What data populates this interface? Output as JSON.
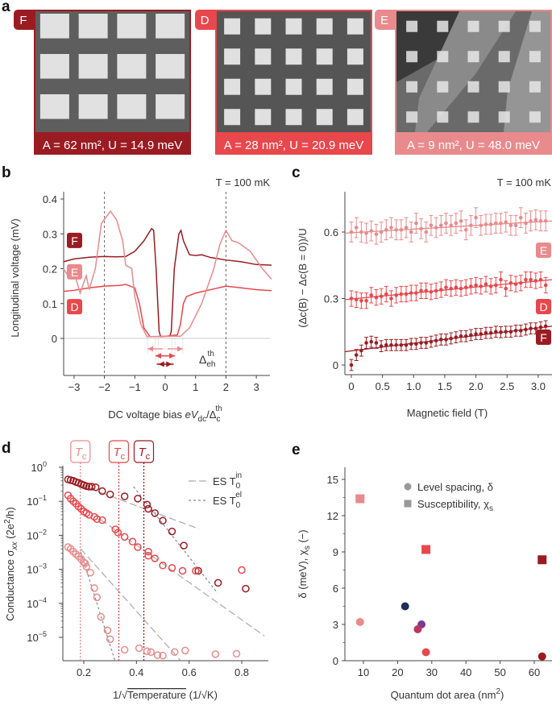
{
  "colors": {
    "F": "#9b1b22",
    "D": "#e8474c",
    "E": "#e98a8c",
    "gray": "#999999",
    "navy": "#1f2d57",
    "purple": "#7b3a8c",
    "rose": "#b83a5e"
  },
  "panel_letters": {
    "a": "a",
    "b": "b",
    "c": "c",
    "d": "d",
    "e": "e"
  },
  "panel_a": {
    "tiles": [
      {
        "tag": "F",
        "caption": "A = 62 nm², U = 14.9 meV",
        "color": "#9b1b22"
      },
      {
        "tag": "D",
        "caption": "A = 28 nm², U = 20.9 meV",
        "color": "#e8474c"
      },
      {
        "tag": "E",
        "caption": "A = 9 nm², U = 48.0 meV",
        "color": "#e98a8c"
      }
    ]
  },
  "chart_data": [
    {
      "panel": "b",
      "type": "line",
      "annotation": "T = 100 mK",
      "xlabel": {
        "main": "DC voltage bias ",
        "var": "eV",
        "sub": "dc",
        "slash": "/Δ",
        "sub2": "c",
        "sup2": "th"
      },
      "ylabel": "Longitudinal voltage (mV)",
      "xlim": [
        -3.35,
        3.5
      ],
      "ylim": [
        -0.105,
        0.42
      ],
      "xticks": [
        -3,
        -2,
        -1,
        0,
        1,
        2,
        3
      ],
      "xticklabels": [
        "−3",
        "−2",
        "−1",
        "0",
        "1",
        "2",
        "3"
      ],
      "yticks": [
        0,
        0.1,
        0.2,
        0.3,
        0.4
      ],
      "yticklabels": [
        "0",
        "0.1",
        "0.2",
        "0.3",
        "0.4"
      ],
      "vlines_dashed": [
        -2,
        2
      ],
      "gap_annotation": {
        "label": "Δ",
        "sub": "eh",
        "sup": "th"
      },
      "series": [
        {
          "name": "F",
          "color": "#9b1b22",
          "x": [
            -3.35,
            -3,
            -2.5,
            -2,
            -1.6,
            -1.3,
            -1,
            -0.7,
            -0.45,
            -0.38,
            -0.3,
            -0.2,
            -0.15,
            0,
            0.15,
            0.2,
            0.3,
            0.45,
            0.52,
            0.6,
            0.8,
            1,
            1.2,
            1.5,
            2,
            2.5,
            3,
            3.5
          ],
          "y": [
            0.22,
            0.228,
            0.233,
            0.235,
            0.234,
            0.235,
            0.25,
            0.28,
            0.315,
            0.31,
            0.2,
            0.02,
            0.005,
            0.006,
            0.006,
            0.02,
            0.2,
            0.3,
            0.31,
            0.28,
            0.24,
            0.238,
            0.24,
            0.232,
            0.225,
            0.22,
            0.212,
            0.21
          ],
          "gap": 0.22
        },
        {
          "name": "D",
          "color": "#e8474c",
          "x": [
            -3.35,
            -3,
            -2.5,
            -2,
            -1.5,
            -1.3,
            -1,
            -0.85,
            -0.7,
            -0.5,
            0,
            0.4,
            0.5,
            0.6,
            0.7,
            1,
            1.5,
            2,
            2.5,
            3,
            3.5
          ],
          "y": [
            0.135,
            0.138,
            0.145,
            0.15,
            0.152,
            0.155,
            0.145,
            0.1,
            0.03,
            0.005,
            0.006,
            0.01,
            0.04,
            0.1,
            0.12,
            0.13,
            0.14,
            0.15,
            0.145,
            0.14,
            0.137
          ],
          "gap": 0.32
        },
        {
          "name": "E",
          "color": "#e98a8c",
          "x": [
            -3.35,
            -3.2,
            -3,
            -2.8,
            -2.6,
            -2.5,
            -2.3,
            -2.1,
            -1.8,
            -1.6,
            -1.4,
            -1.3,
            -1.1,
            -1,
            -0.8,
            -0.6,
            0,
            0.5,
            0.8,
            1.2,
            1.6,
            1.8,
            2,
            2.2,
            2.4,
            2.8,
            3.2,
            3.5
          ],
          "y": [
            0.2,
            0.18,
            0.19,
            0.13,
            0.18,
            0.14,
            0.2,
            0.33,
            0.365,
            0.34,
            0.28,
            0.21,
            0.2,
            0.12,
            0.04,
            0.005,
            0.006,
            0.006,
            0.03,
            0.1,
            0.2,
            0.27,
            0.31,
            0.28,
            0.275,
            0.25,
            0.2,
            0.17
          ],
          "gap": 0.58
        }
      ]
    },
    {
      "panel": "c",
      "type": "scatter",
      "annotation": "T = 100 mK",
      "xlabel": "Magnetic field (T)",
      "ylabel": "(Δc(B) − Δc(B = 0))/U",
      "xlim": [
        -0.1,
        3.22
      ],
      "ylim": [
        -0.05,
        0.78
      ],
      "xticks": [
        0,
        0.5,
        1.0,
        1.5,
        2.0,
        2.5,
        3.0
      ],
      "xticklabels": [
        "0",
        "0.5",
        "1.0",
        "1.5",
        "2.0",
        "2.5",
        "3.0"
      ],
      "yticks": [
        0,
        0.3,
        0.6
      ],
      "yticklabels": [
        "0",
        "0.3",
        "0.6"
      ],
      "x": [
        0,
        0.08,
        0.16,
        0.24,
        0.32,
        0.4,
        0.48,
        0.56,
        0.64,
        0.72,
        0.8,
        0.88,
        0.96,
        1.04,
        1.12,
        1.2,
        1.28,
        1.36,
        1.44,
        1.52,
        1.6,
        1.68,
        1.76,
        1.84,
        1.92,
        2.0,
        2.08,
        2.16,
        2.24,
        2.32,
        2.4,
        2.48,
        2.56,
        2.64,
        2.72,
        2.8,
        2.88,
        2.96,
        3.04,
        3.12
      ],
      "series": [
        {
          "name": "E",
          "color": "#e98a8c",
          "error": 0.045,
          "fit": [
            0.595,
            0.65
          ],
          "y": [
            0.6,
            0.62,
            0.6,
            0.595,
            0.605,
            0.59,
            0.6,
            0.61,
            0.62,
            0.61,
            0.61,
            0.62,
            0.6,
            0.64,
            0.615,
            0.6,
            0.63,
            0.62,
            0.63,
            0.64,
            0.63,
            0.64,
            0.65,
            0.61,
            0.63,
            0.665,
            0.63,
            0.635,
            0.635,
            0.64,
            0.64,
            0.645,
            0.63,
            0.63,
            0.665,
            0.64,
            0.65,
            0.655,
            0.65,
            0.65
          ]
        },
        {
          "name": "D",
          "color": "#e8474c",
          "error": 0.035,
          "fit": [
            0.295,
            0.385
          ],
          "y": [
            0.3,
            0.295,
            0.29,
            0.29,
            0.315,
            0.305,
            0.31,
            0.32,
            0.3,
            0.315,
            0.32,
            0.32,
            0.325,
            0.325,
            0.335,
            0.335,
            0.33,
            0.335,
            0.34,
            0.35,
            0.345,
            0.35,
            0.345,
            0.35,
            0.355,
            0.36,
            0.355,
            0.365,
            0.355,
            0.36,
            0.385,
            0.345,
            0.37,
            0.365,
            0.37,
            0.385,
            0.385,
            0.38,
            0.385,
            0.36
          ]
        },
        {
          "name": "F",
          "color": "#9b1b22",
          "error": 0.025,
          "fit": [
            0.06,
            0.175
          ],
          "y": [
            0,
            0.045,
            0.065,
            0.1,
            0.105,
            0.1,
            0.085,
            0.09,
            0.09,
            0.09,
            0.09,
            0.09,
            0.095,
            0.095,
            0.1,
            0.1,
            0.105,
            0.11,
            0.115,
            0.115,
            0.12,
            0.125,
            0.13,
            0.13,
            0.135,
            0.14,
            0.14,
            0.145,
            0.145,
            0.15,
            0.148,
            0.15,
            0.15,
            0.155,
            0.155,
            0.16,
            0.165,
            0.165,
            0.17,
            0.175
          ]
        }
      ]
    },
    {
      "panel": "d",
      "type": "scatter",
      "yscale": "log",
      "xlabel": {
        "pre": "1/√",
        "over": "Temperature",
        "post": " (1/√K)"
      },
      "ylabel": {
        "main": "Conductance σ",
        "sub": "xx",
        "unit": " (2e",
        "sup": "2",
        "unit2": "/h)"
      },
      "xlim": [
        0.12,
        0.9
      ],
      "ylim": [
        2e-06,
        1.1
      ],
      "xticks": [
        0.2,
        0.4,
        0.6,
        0.8
      ],
      "xticklabels": [
        "0.2",
        "0.4",
        "0.6",
        "0.8"
      ],
      "yticks_exp": [
        0,
        -1,
        -2,
        -3,
        -4,
        -5
      ],
      "ytick_base": "10",
      "ytick_exps": [
        "0",
        "−1",
        "−2",
        "−3",
        "−4",
        "−5"
      ],
      "tc_markers": [
        {
          "label": "T",
          "sub": "c",
          "x": 0.187,
          "color": "#e98a8c"
        },
        {
          "label": "T",
          "sub": "c",
          "x": 0.333,
          "color": "#e8474c"
        },
        {
          "label": "T",
          "sub": "c",
          "x": 0.428,
          "color": "#9b1b22"
        }
      ],
      "legend": [
        {
          "label": "ES T",
          "sub": "0",
          "sup": "in",
          "style": "long-dash"
        },
        {
          "label": "ES T",
          "sub": "0",
          "sup": "el",
          "style": "short-dash"
        }
      ],
      "legend_position": "top-right",
      "fits_long_dash": [
        [
          0.188,
          0.3,
          0.637,
          0.0155
        ],
        [
          0.264,
          0.029,
          0.886,
          1.1e-05
        ],
        [
          0.188,
          0.004,
          0.567,
          2.1e-06
        ]
      ],
      "fits_short_dash": [
        [
          0.389,
          0.27,
          0.708,
          0.0002
        ],
        [
          0.188,
          0.0033,
          0.318,
          2.1e-06
        ]
      ],
      "series": [
        {
          "name": "F",
          "color": "#9b1b22",
          "points": [
            [
              0.14,
              0.44
            ],
            [
              0.15,
              0.42
            ],
            [
              0.16,
              0.4
            ],
            [
              0.17,
              0.37
            ],
            [
              0.18,
              0.35
            ],
            [
              0.19,
              0.32
            ],
            [
              0.2,
              0.3
            ],
            [
              0.21,
              0.28
            ],
            [
              0.22,
              0.27
            ],
            [
              0.23,
              0.27
            ],
            [
              0.245,
              0.26
            ],
            [
              0.27,
              0.2
            ],
            [
              0.3,
              0.16
            ],
            [
              0.355,
              0.14
            ],
            [
              0.405,
              0.12
            ],
            [
              0.44,
              0.08
            ],
            [
              0.445,
              0.06
            ],
            [
              0.47,
              0.045
            ],
            [
              0.5,
              0.027
            ],
            [
              0.535,
              0.013
            ],
            [
              0.58,
              0.005
            ],
            [
              0.635,
              0.0009
            ],
            [
              0.71,
              0.0004
            ],
            [
              0.815,
              0.00027
            ]
          ]
        },
        {
          "name": "D",
          "color": "#e8474c",
          "points": [
            [
              0.14,
              0.15
            ],
            [
              0.15,
              0.12
            ],
            [
              0.16,
              0.1
            ],
            [
              0.17,
              0.085
            ],
            [
              0.18,
              0.07
            ],
            [
              0.19,
              0.06
            ],
            [
              0.2,
              0.05
            ],
            [
              0.21,
              0.045
            ],
            [
              0.22,
              0.04
            ],
            [
              0.24,
              0.035
            ],
            [
              0.25,
              0.03
            ],
            [
              0.27,
              0.028
            ],
            [
              0.32,
              0.015
            ],
            [
              0.33,
              0.012
            ],
            [
              0.355,
              0.009
            ],
            [
              0.385,
              0.0065
            ],
            [
              0.405,
              0.0045
            ],
            [
              0.445,
              0.0033
            ],
            [
              0.445,
              0.0025
            ],
            [
              0.47,
              0.0021
            ],
            [
              0.5,
              0.0013
            ],
            [
              0.535,
              0.0011
            ],
            [
              0.575,
              0.0009
            ],
            [
              0.625,
              0.0009
            ],
            [
              0.8,
              0.00095
            ]
          ]
        },
        {
          "name": "E",
          "color": "#e98a8c",
          "points": [
            [
              0.14,
              0.0045
            ],
            [
              0.15,
              0.004
            ],
            [
              0.16,
              0.0033
            ],
            [
              0.17,
              0.0028
            ],
            [
              0.18,
              0.0024
            ],
            [
              0.19,
              0.002
            ],
            [
              0.2,
              0.0016
            ],
            [
              0.205,
              0.0015
            ],
            [
              0.21,
              0.0012
            ],
            [
              0.225,
              0.0008
            ],
            [
              0.24,
              0.00028
            ],
            [
              0.25,
              0.00015
            ],
            [
              0.265,
              4e-05
            ],
            [
              0.29,
              1.6e-05
            ],
            [
              0.3,
              8.8e-06
            ],
            [
              0.355,
              4.3e-06
            ],
            [
              0.41,
              4.8e-06
            ],
            [
              0.44,
              3.9e-06
            ],
            [
              0.455,
              3.7e-06
            ],
            [
              0.48,
              3e-06
            ],
            [
              0.5,
              2.9e-06
            ],
            [
              0.545,
              3.7e-06
            ],
            [
              0.585,
              4.1e-06
            ],
            [
              0.7,
              3.2e-06
            ],
            [
              0.78,
              3.3e-06
            ]
          ]
        }
      ]
    },
    {
      "panel": "e",
      "type": "scatter",
      "xlabel": {
        "main": "Quantum dot area (nm",
        "sup": "2",
        "end": ")"
      },
      "ylabel": {
        "main": "δ (meV), χ",
        "sub": "s",
        "end": " (−)"
      },
      "xlim": [
        4.6,
        65.6
      ],
      "ylim": [
        0,
        16
      ],
      "xticks": [
        10,
        20,
        30,
        40,
        50,
        60
      ],
      "xticklabels": [
        "10",
        "20",
        "30",
        "40",
        "50",
        "60"
      ],
      "yticks": [
        0,
        3,
        6,
        9,
        12,
        15
      ],
      "yticklabels": [
        "0",
        "3",
        "6",
        "9",
        "12",
        "15"
      ],
      "legend": [
        {
          "marker": "circle",
          "label": "Level spacing, δ",
          "sub": ""
        },
        {
          "marker": "square",
          "label": "Susceptibility, χ",
          "sub": "s"
        }
      ],
      "legend_position": "top-right",
      "level_spacing": [
        {
          "x": 9,
          "y": 3.2,
          "color": "#e98a8c"
        },
        {
          "x": 22.2,
          "y": 4.5,
          "color": "#1f2d57"
        },
        {
          "x": 27,
          "y": 3.0,
          "color": "#7b3a8c"
        },
        {
          "x": 25.9,
          "y": 2.6,
          "color": "#b83a5e"
        },
        {
          "x": 28.3,
          "y": 0.7,
          "color": "#e8474c"
        },
        {
          "x": 62.3,
          "y": 0.35,
          "color": "#9b1b22"
        }
      ],
      "susceptibility": [
        {
          "x": 9,
          "y": 13.4,
          "color": "#e98a8c"
        },
        {
          "x": 28.3,
          "y": 9.2,
          "color": "#e8474c"
        },
        {
          "x": 62.3,
          "y": 8.35,
          "color": "#9b1b22"
        }
      ]
    }
  ]
}
